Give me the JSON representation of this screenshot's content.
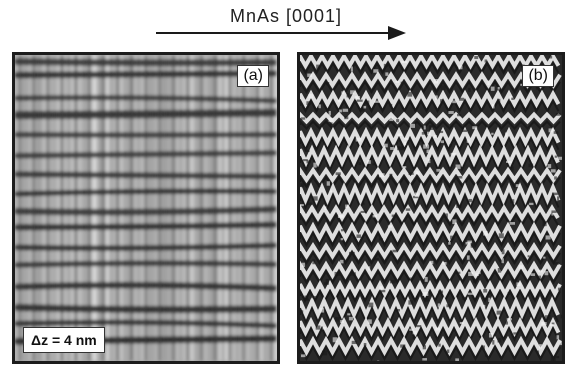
{
  "figure": {
    "direction_label": "MnAs [0001]",
    "panels": [
      {
        "letter": "(a)"
      },
      {
        "letter": "(b)"
      }
    ],
    "scale_label": "Δz = 4 nm"
  },
  "colors": {
    "frame": "#1c1c1c",
    "arrow": "#1a1a1a",
    "panel_a_light": "#d8d8d8",
    "panel_a_dark": "#1e1e1e",
    "panel_b_light": "#f4f4f4",
    "panel_b_dark": "#161616"
  },
  "icons": {
    "direction_arrow": "right-arrow-icon"
  }
}
